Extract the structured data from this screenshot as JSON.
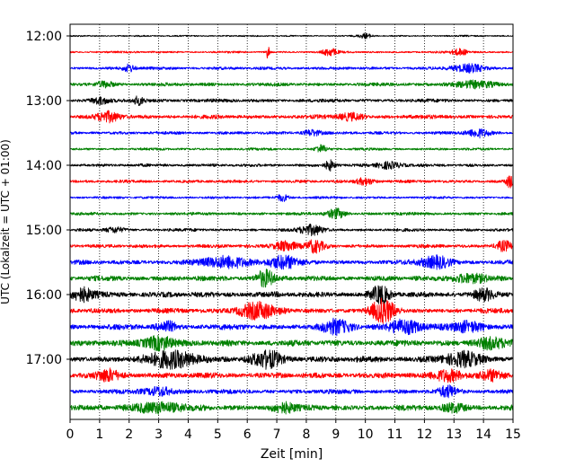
{
  "chart_data": {
    "type": "line",
    "title": "",
    "xlabel": "Zeit  [min]",
    "ylabel": "UTC (Lokalzeit = UTC + 01:00)",
    "xlim": [
      0,
      15
    ],
    "x_ticks": [
      "0",
      "1",
      "2",
      "3",
      "4",
      "5",
      "6",
      "7",
      "8",
      "9",
      "10",
      "11",
      "12",
      "13",
      "14",
      "15"
    ],
    "y_ticks": [
      "12:00",
      "13:00",
      "14:00",
      "15:00",
      "16:00",
      "17:00"
    ],
    "grid_x": true,
    "grid_style": "dotted",
    "trace_colors": [
      "#000000",
      "#ff0000",
      "#0000ff",
      "#008000"
    ],
    "trace_minutes": 15,
    "traces": [
      {
        "time": "12:00",
        "amplitude": 0.15,
        "bursts": [
          {
            "t": 10.0,
            "a": 0.5,
            "w": 0.2
          }
        ]
      },
      {
        "time": "12:15",
        "amplitude": 0.2,
        "bursts": [
          {
            "t": 6.7,
            "a": 1.4,
            "w": 0.05
          },
          {
            "t": 8.8,
            "a": 0.7,
            "w": 0.25
          },
          {
            "t": 13.2,
            "a": 0.6,
            "w": 0.3
          }
        ]
      },
      {
        "time": "12:30",
        "amplitude": 0.3,
        "bursts": [
          {
            "t": 2.0,
            "a": 0.7,
            "w": 0.2
          },
          {
            "t": 13.5,
            "a": 0.8,
            "w": 0.5
          }
        ]
      },
      {
        "time": "12:45",
        "amplitude": 0.35,
        "bursts": [
          {
            "t": 1.2,
            "a": 0.5,
            "w": 0.3
          },
          {
            "t": 13.6,
            "a": 0.6,
            "w": 0.7
          }
        ]
      },
      {
        "time": "13:00",
        "amplitude": 0.35,
        "bursts": [
          {
            "t": 1.0,
            "a": 0.6,
            "w": 0.3
          },
          {
            "t": 2.3,
            "a": 0.8,
            "w": 0.2
          }
        ]
      },
      {
        "time": "13:15",
        "amplitude": 0.4,
        "bursts": [
          {
            "t": 1.3,
            "a": 0.9,
            "w": 0.4
          },
          {
            "t": 9.5,
            "a": 0.7,
            "w": 0.4
          }
        ]
      },
      {
        "time": "13:30",
        "amplitude": 0.3,
        "bursts": [
          {
            "t": 8.2,
            "a": 0.6,
            "w": 0.3
          },
          {
            "t": 13.8,
            "a": 0.8,
            "w": 0.4
          }
        ]
      },
      {
        "time": "13:45",
        "amplitude": 0.25,
        "bursts": [
          {
            "t": 8.5,
            "a": 0.8,
            "w": 0.2
          }
        ]
      },
      {
        "time": "14:00",
        "amplitude": 0.3,
        "bursts": [
          {
            "t": 8.8,
            "a": 1.0,
            "w": 0.15
          },
          {
            "t": 10.8,
            "a": 0.7,
            "w": 0.4
          }
        ]
      },
      {
        "time": "14:15",
        "amplitude": 0.3,
        "bursts": [
          {
            "t": 10.0,
            "a": 0.7,
            "w": 0.3
          },
          {
            "t": 14.9,
            "a": 1.1,
            "w": 0.15
          }
        ]
      },
      {
        "time": "14:30",
        "amplitude": 0.25,
        "bursts": [
          {
            "t": 7.2,
            "a": 0.7,
            "w": 0.2
          }
        ]
      },
      {
        "time": "14:45",
        "amplitude": 0.3,
        "bursts": [
          {
            "t": 9.0,
            "a": 1.0,
            "w": 0.3
          }
        ]
      },
      {
        "time": "15:00",
        "amplitude": 0.3,
        "bursts": [
          {
            "t": 8.2,
            "a": 1.0,
            "w": 0.4
          },
          {
            "t": 1.5,
            "a": 0.5,
            "w": 0.3
          }
        ]
      },
      {
        "time": "15:15",
        "amplitude": 0.35,
        "bursts": [
          {
            "t": 7.3,
            "a": 1.0,
            "w": 0.4
          },
          {
            "t": 8.3,
            "a": 1.2,
            "w": 0.3
          },
          {
            "t": 14.7,
            "a": 1.0,
            "w": 0.3
          }
        ]
      },
      {
        "time": "15:30",
        "amplitude": 0.45,
        "bursts": [
          {
            "t": 5.3,
            "a": 1.1,
            "w": 0.8
          },
          {
            "t": 7.2,
            "a": 1.2,
            "w": 0.5
          },
          {
            "t": 12.4,
            "a": 1.2,
            "w": 0.5
          }
        ]
      },
      {
        "time": "15:45",
        "amplitude": 0.5,
        "bursts": [
          {
            "t": 6.6,
            "a": 1.6,
            "w": 0.3
          },
          {
            "t": 13.5,
            "a": 0.8,
            "w": 0.6
          }
        ]
      },
      {
        "time": "16:00",
        "amplitude": 0.55,
        "bursts": [
          {
            "t": 0.4,
            "a": 1.2,
            "w": 0.4
          },
          {
            "t": 10.5,
            "a": 1.6,
            "w": 0.3
          },
          {
            "t": 14.0,
            "a": 1.0,
            "w": 0.3
          }
        ]
      },
      {
        "time": "16:15",
        "amplitude": 0.5,
        "bursts": [
          {
            "t": 6.3,
            "a": 1.6,
            "w": 0.6
          },
          {
            "t": 10.6,
            "a": 2.2,
            "w": 0.4
          }
        ]
      },
      {
        "time": "16:30",
        "amplitude": 0.55,
        "bursts": [
          {
            "t": 3.3,
            "a": 1.0,
            "w": 0.3
          },
          {
            "t": 9.0,
            "a": 1.2,
            "w": 0.5
          },
          {
            "t": 11.3,
            "a": 1.3,
            "w": 0.6
          },
          {
            "t": 13.5,
            "a": 1.0,
            "w": 0.5
          }
        ]
      },
      {
        "time": "16:45",
        "amplitude": 0.6,
        "bursts": [
          {
            "t": 3.0,
            "a": 1.3,
            "w": 0.5
          },
          {
            "t": 14.2,
            "a": 1.0,
            "w": 0.5
          }
        ]
      },
      {
        "time": "17:00",
        "amplitude": 0.6,
        "bursts": [
          {
            "t": 3.5,
            "a": 1.6,
            "w": 0.8
          },
          {
            "t": 6.7,
            "a": 1.5,
            "w": 0.5
          },
          {
            "t": 13.3,
            "a": 1.3,
            "w": 0.6
          }
        ]
      },
      {
        "time": "17:15",
        "amplitude": 0.55,
        "bursts": [
          {
            "t": 1.3,
            "a": 1.0,
            "w": 0.4
          },
          {
            "t": 12.8,
            "a": 1.1,
            "w": 0.5
          },
          {
            "t": 14.3,
            "a": 0.8,
            "w": 0.4
          }
        ]
      },
      {
        "time": "17:30",
        "amplitude": 0.45,
        "bursts": [
          {
            "t": 3.0,
            "a": 0.8,
            "w": 0.5
          },
          {
            "t": 12.8,
            "a": 1.0,
            "w": 0.3
          }
        ]
      },
      {
        "time": "17:45",
        "amplitude": 0.55,
        "bursts": [
          {
            "t": 3.0,
            "a": 1.0,
            "w": 0.8
          },
          {
            "t": 7.2,
            "a": 0.9,
            "w": 0.4
          },
          {
            "t": 13.0,
            "a": 0.8,
            "w": 0.4
          }
        ]
      }
    ]
  }
}
